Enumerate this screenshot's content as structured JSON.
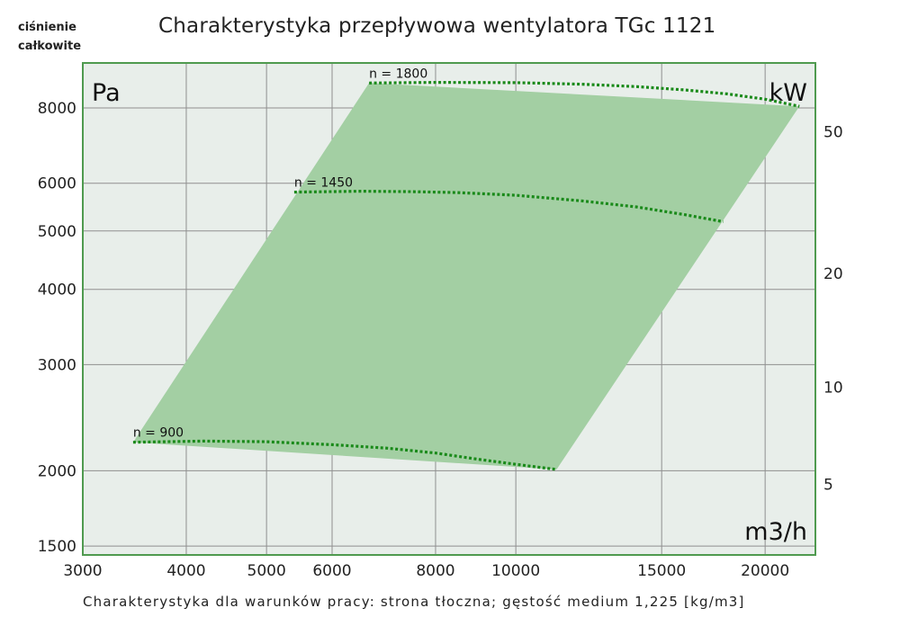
{
  "chart_data": {
    "type": "area",
    "title": "Charakterystyka przepływowa wentylatora TGc 1121",
    "ylabel": "ciśnienie całkowite",
    "y_unit": "Pa",
    "x_unit": "m3/h",
    "y2_unit": "kW",
    "footer": "Charakterystyka dla warunków pracy: strona tłoczna; gęstość medium 1,225 [kg/m3]",
    "x_scale": "log",
    "y_scale": "log",
    "xlim": [
      3000,
      23000
    ],
    "ylim": [
      1450,
      9500
    ],
    "x_ticks": [
      3000,
      4000,
      5000,
      6000,
      8000,
      10000,
      15000,
      20000
    ],
    "y_ticks": [
      1500,
      2000,
      3000,
      4000,
      5000,
      6000,
      8000
    ],
    "y2_ticks": [
      {
        "label": "5",
        "y_pos": 1900
      },
      {
        "label": "10",
        "y_pos": 2750
      },
      {
        "label": "20",
        "y_pos": 4250
      },
      {
        "label": "50",
        "y_pos": 7300
      }
    ],
    "grid": true,
    "colors": {
      "area_fill": "#a3cfa3",
      "plot_bg": "#e8eeea",
      "curve": "#1a8a1a",
      "border": "#4f9a4f",
      "grid": "#8f8f8f"
    },
    "operating_area": {
      "x": [
        3450,
        6650,
        22000,
        11200
      ],
      "y": [
        2230,
        8800,
        8050,
        2010
      ]
    },
    "series": [
      {
        "name": "n = 900",
        "x": [
          3450,
          4200,
          5000,
          6000,
          7000,
          8000,
          9000,
          10000,
          11200
        ],
        "y": [
          2230,
          2240,
          2235,
          2210,
          2180,
          2140,
          2090,
          2050,
          2010
        ]
      },
      {
        "name": "n = 1450",
        "x": [
          5400,
          6500,
          7500,
          8500,
          10000,
          12000,
          14000,
          16000,
          17800
        ],
        "y": [
          5800,
          5820,
          5810,
          5790,
          5730,
          5610,
          5480,
          5320,
          5180
        ]
      },
      {
        "name": "n = 1800",
        "x": [
          6650,
          8000,
          10000,
          12000,
          14000,
          16000,
          18000,
          20000,
          22000
        ],
        "y": [
          8800,
          8820,
          8810,
          8760,
          8680,
          8570,
          8440,
          8270,
          8050
        ]
      }
    ]
  }
}
